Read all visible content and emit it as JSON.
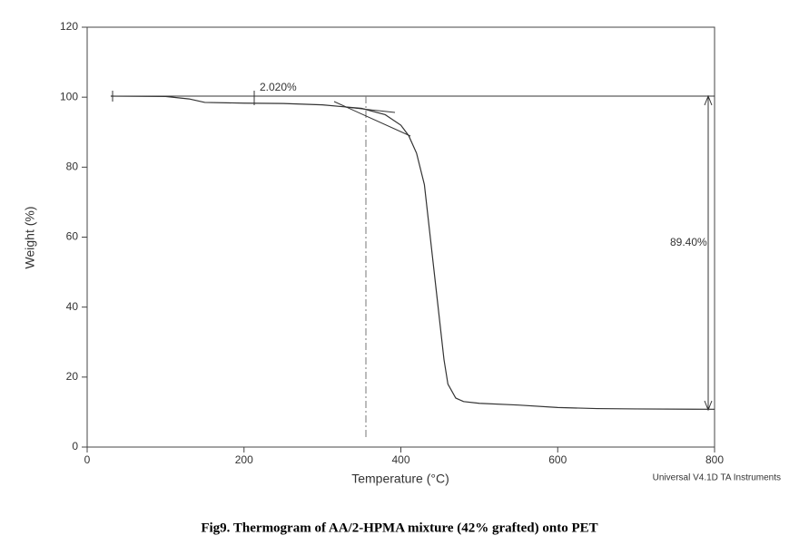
{
  "chart_data": {
    "type": "line",
    "x_label": "Temperature (°C)",
    "y_label": "Weight (%)",
    "x": [
      30,
      100,
      130,
      150,
      200,
      250,
      300,
      350,
      380,
      400,
      410,
      420,
      430,
      440,
      445,
      450,
      455,
      460,
      470,
      480,
      500,
      550,
      600,
      650,
      700,
      800
    ],
    "series": [
      {
        "color": "#333333",
        "values": [
          100.3,
          100.2,
          99.5,
          98.5,
          98.3,
          98.2,
          97.8,
          96.8,
          95,
          92,
          89,
          84,
          75,
          55,
          45,
          35,
          25,
          18,
          14,
          13,
          12.5,
          12,
          11.3,
          11,
          10.9,
          10.8
        ]
      }
    ],
    "xlim": [
      0,
      800
    ],
    "xticks": [
      0,
      200,
      400,
      600,
      800
    ],
    "ylim": [
      0,
      120
    ],
    "yticks": [
      0,
      20,
      40,
      60,
      80,
      100,
      120
    ],
    "annotations": [
      "2.020%",
      "89.40%",
      "Universal V4.1D TA Instruments"
    ],
    "caption": "Fig9. Thermogram of AA/2-HPMA mixture (42% grafted) onto PET"
  }
}
